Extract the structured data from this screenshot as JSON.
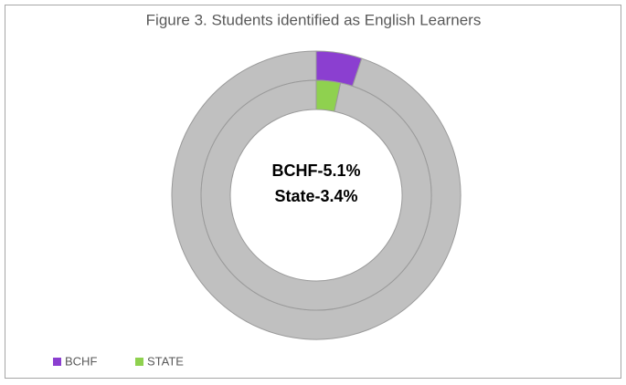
{
  "chart_data": {
    "type": "doughnut",
    "title": "Figure 3.  Students identified as English Learners",
    "series": [
      {
        "name": "BCHF",
        "color": "#8b3fd0",
        "values": [
          5.1,
          94.9
        ]
      },
      {
        "name": "STATE",
        "color": "#8fd14f",
        "values": [
          3.4,
          96.6
        ]
      }
    ],
    "rest_color": "#c0c0c0",
    "annotations": [
      "BCHF-5.1%",
      "State-3.4%"
    ],
    "legend": "bottom-left"
  }
}
